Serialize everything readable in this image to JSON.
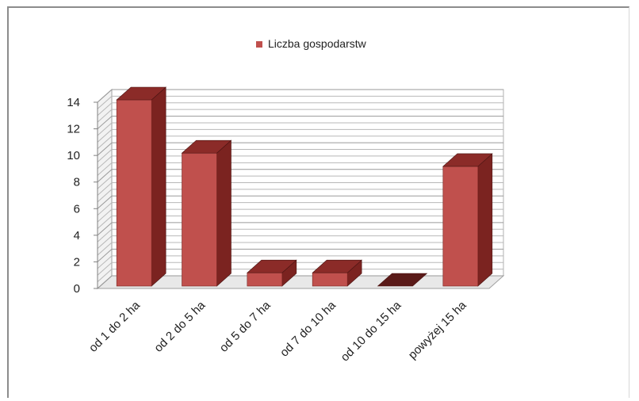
{
  "chart_data": {
    "type": "bar",
    "categories": [
      "od 1 do 2 ha",
      "od 2 do 5 ha",
      "od 5 do 7 ha",
      "od 7 do 10 ha",
      "od 10 do 15 ha",
      "powyżej 15 ha"
    ],
    "series": [
      {
        "name": "Liczba gospodarstw",
        "values": [
          14,
          10,
          1,
          1,
          0,
          9
        ]
      }
    ],
    "title": "",
    "xlabel": "",
    "ylabel": "",
    "ylim": [
      0,
      14
    ],
    "yticks": [
      "0",
      "2",
      "4",
      "6",
      "8",
      "10",
      "12",
      "14"
    ],
    "grid": true,
    "legend": "top-center",
    "colors": {
      "bar_front": "#c0504d",
      "bar_top": "#8b2b28",
      "bar_side": "#7b2320",
      "grid": "#b8b8b8"
    }
  }
}
